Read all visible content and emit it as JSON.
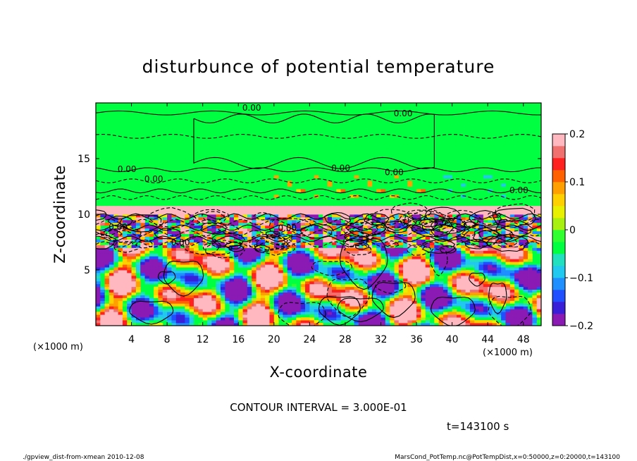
{
  "chart_data": {
    "type": "heatmap",
    "title": "disturbunce of potential temperature",
    "xlabel": "X-coordinate",
    "ylabel": "Z-coordinate",
    "x_units": "(×1000 m)",
    "z_units": "(×1000 m)",
    "xlim": [
      0,
      50
    ],
    "ylim": [
      0,
      20
    ],
    "x_ticks": [
      4,
      8,
      12,
      16,
      20,
      24,
      28,
      32,
      36,
      40,
      44,
      48
    ],
    "y_ticks": [
      5,
      10,
      15
    ],
    "colorbar": {
      "min": -0.2,
      "max": 0.2,
      "ticks": [
        0.2,
        0.1,
        0,
        -0.1,
        -0.2
      ],
      "tick_labels": [
        "0.2",
        "0.1",
        "0",
        "−0.1",
        "−0.2"
      ],
      "colors": [
        "#8b1ab4",
        "#3a1fd8",
        "#1f4fff",
        "#1f8fff",
        "#21c8f0",
        "#20e0c0",
        "#00ff40",
        "#30ff30",
        "#a8f010",
        "#e8f000",
        "#ffd000",
        "#ffa000",
        "#ff6000",
        "#ff2020",
        "#f07070",
        "#ffb8c0"
      ]
    },
    "contour_interval": "CONTOUR INTERVAL = 3.000E-01",
    "contour_labels": [
      "0.00",
      "0.00",
      "0.00",
      "0.00",
      "0.00",
      "0.00",
      "0.00",
      "0.00",
      "0.00",
      "0.00"
    ],
    "time_label": "t=143100 s",
    "regions": {
      "upper_layer": {
        "z_range": [
          10.7,
          20
        ],
        "value": 0.0
      },
      "warm_band": {
        "z_range": [
          10.0,
          10.7
        ],
        "value": 0.2
      },
      "mixed_layer": {
        "z_range": [
          7,
          10
        ],
        "value_range": [
          -0.2,
          0.2
        ]
      },
      "convective_layer": {
        "z_range": [
          0,
          7
        ],
        "value_range": [
          -0.2,
          0.2
        ]
      }
    }
  },
  "footer": {
    "left": "./gpview_dist-from-xmean  2010-12-08",
    "right": "MarsCond_PotTemp.nc@PotTempDist,x=0:50000,z=0:20000,t=143100"
  },
  "colors": {
    "background": "#ffffff",
    "neutral": "#00ff40",
    "contour": "#000000"
  }
}
